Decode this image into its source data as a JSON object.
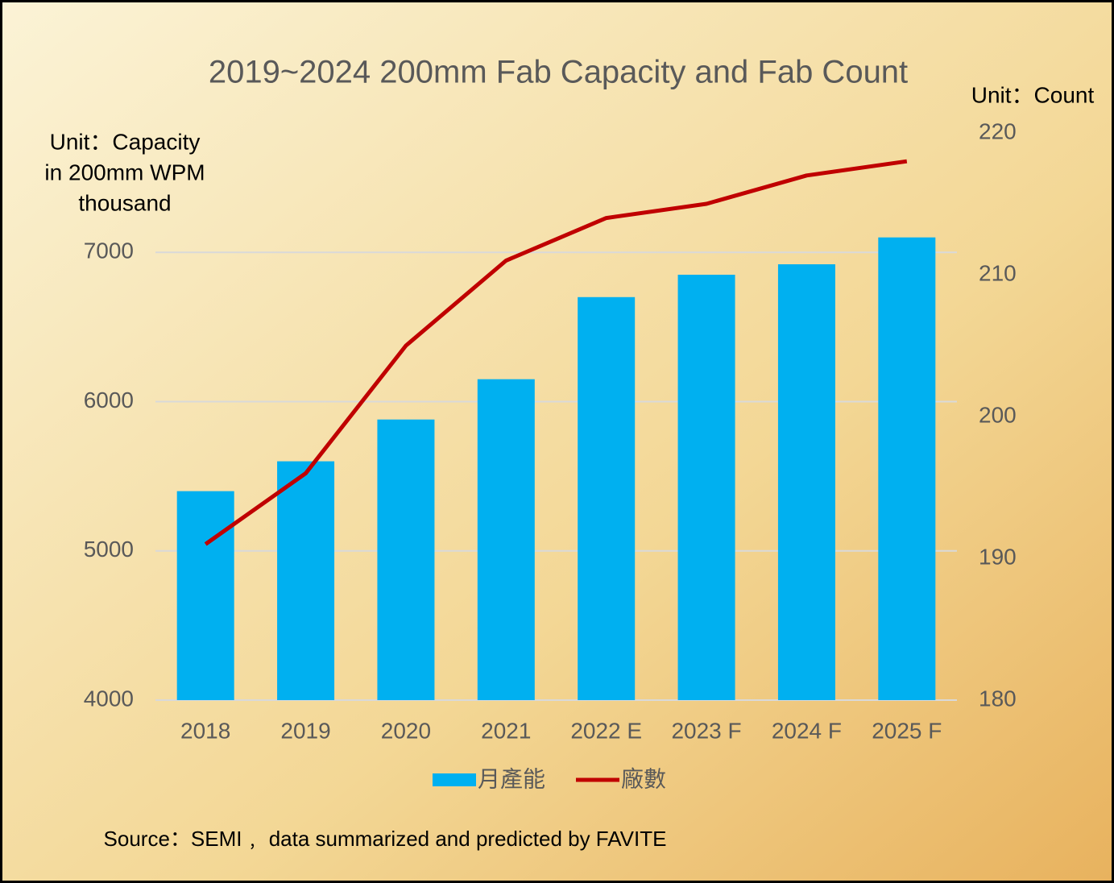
{
  "chart_data": {
    "type": "bar_line",
    "title": "2019~2024 200mm Fab Capacity and Fab Count",
    "y_label": [
      "Unit：Capacity",
      "in 200mm WPM",
      "thousand"
    ],
    "y2_label": "Unit：Count",
    "categories": [
      "2018",
      "2019",
      "2020",
      "2021",
      "2022 E",
      "2023 F",
      "2024 F",
      "2025 F"
    ],
    "series": [
      {
        "name": "月產能",
        "type": "bar",
        "color": "#00b0f0",
        "values": [
          5400,
          5600,
          5880,
          6150,
          6700,
          6850,
          6920,
          7100
        ]
      },
      {
        "name": "廠數",
        "type": "line",
        "axis": "y2",
        "color": "#c00000",
        "values": [
          191,
          196,
          205,
          211,
          214,
          215,
          217,
          218
        ]
      }
    ],
    "ylim": [
      4000,
      7800
    ],
    "yticks": [
      4000,
      5000,
      6000,
      7000
    ],
    "y2lim": [
      180,
      220
    ],
    "y2ticks": [
      180,
      190,
      200,
      210,
      220
    ],
    "grid": true,
    "legend": "bottom",
    "source": "Source：SEMI﹐ data summarized and predicted by FAVITE"
  }
}
